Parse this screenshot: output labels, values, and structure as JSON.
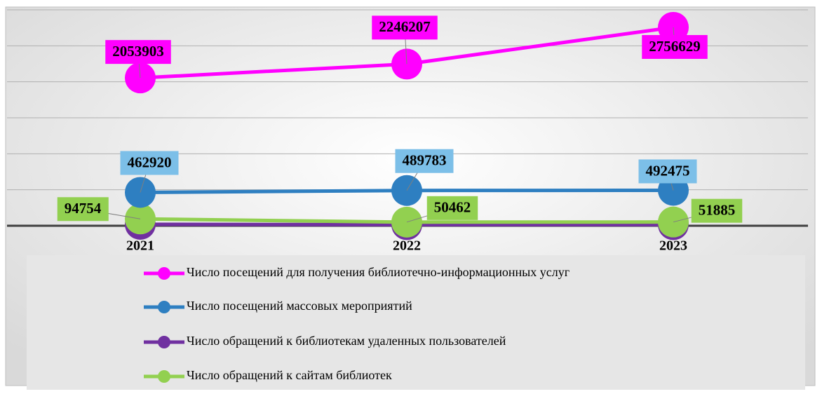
{
  "chart_data": {
    "type": "line",
    "categories": [
      "2021",
      "2022",
      "2023"
    ],
    "series": [
      {
        "name": "Число посещений для получения библиотечно-информационных услуг",
        "color": "#ff00ff",
        "label_color": "#ff00ff",
        "values": [
          2053903,
          2246207,
          2756629
        ]
      },
      {
        "name": "Число посещений массовых мероприятий",
        "color": "#2e7fc1",
        "label_color": "#7cbfe8",
        "values": [
          462920,
          489783,
          492475
        ]
      },
      {
        "name": "Число обращений  к библиотекам  удаленных пользователей",
        "color": "#7030a0",
        "values": [
          20000,
          15000,
          15000
        ]
      },
      {
        "name": "Число обращений к сайтам библиотек",
        "color": "#92d050",
        "label_color": "#92d050",
        "values": [
          94754,
          50462,
          51885
        ]
      }
    ],
    "ylim": [
      0,
      3000000
    ],
    "yticks": [
      0,
      500000,
      1000000,
      1500000,
      2000000,
      2500000,
      3000000
    ],
    "grid": true
  }
}
